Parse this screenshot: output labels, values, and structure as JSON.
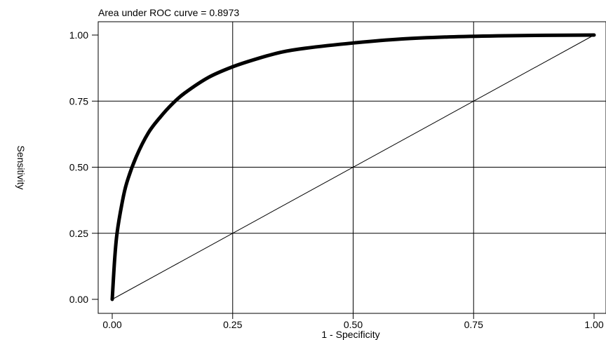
{
  "chart_data": {
    "type": "line",
    "title": "Area under ROC curve = 0.8973",
    "xlabel": "1 - Specificity",
    "ylabel": "Sensitivity",
    "xlim": [
      0,
      1
    ],
    "ylim": [
      0,
      1
    ],
    "grid": true,
    "xticks": [
      0,
      0.25,
      0.5,
      0.75,
      1
    ],
    "yticks": [
      0,
      0.25,
      0.5,
      0.75,
      1
    ],
    "xtick_labels": [
      "0.00",
      "0.25",
      "0.50",
      "0.75",
      "1.00"
    ],
    "ytick_labels": [
      "0.00",
      "0.25",
      "0.50",
      "0.75",
      "1.00"
    ],
    "series": [
      {
        "role": "roc-curve",
        "x": [
          0,
          0.005,
          0.01,
          0.02,
          0.03,
          0.05,
          0.075,
          0.1,
          0.125,
          0.15,
          0.2,
          0.25,
          0.3,
          0.35,
          0.4,
          0.5,
          0.6,
          0.7,
          0.8,
          0.9,
          1.0
        ],
        "y": [
          0,
          0.15,
          0.25,
          0.36,
          0.44,
          0.54,
          0.63,
          0.69,
          0.74,
          0.78,
          0.84,
          0.88,
          0.91,
          0.935,
          0.95,
          0.97,
          0.985,
          0.993,
          0.997,
          0.999,
          1.0
        ]
      },
      {
        "role": "reference-line",
        "x": [
          0,
          1
        ],
        "y": [
          0,
          1
        ]
      }
    ]
  }
}
